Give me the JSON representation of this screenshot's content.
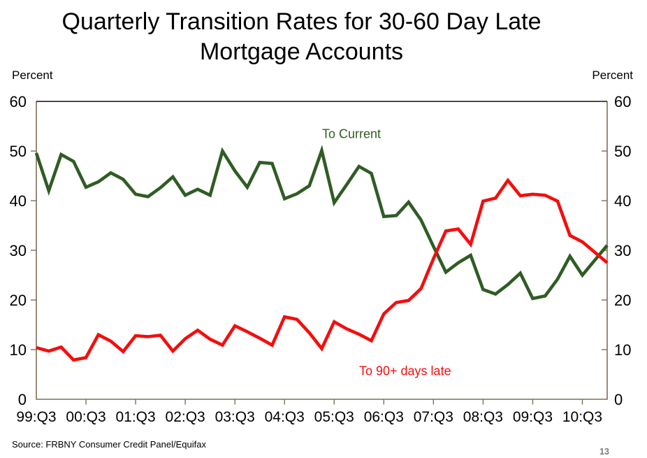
{
  "page": {
    "title_line1": "Quarterly Transition Rates for 30-60 Day Late",
    "title_line2": "Mortgage Accounts",
    "unit_label_left": "Percent",
    "unit_label_right": "Percent",
    "source": "Source: FRBNY Consumer Credit Panel/Equifax",
    "page_number": "13"
  },
  "colors": {
    "axis": "#7E6F55",
    "top_border": "#111111",
    "green": "#2F5C24",
    "red": "#F50D0D",
    "text": "#000000",
    "page_number": "#7b7b7b"
  },
  "chart_data": {
    "type": "line",
    "title": "Quarterly Transition Rates for 30-60 Day Late Mortgage Accounts",
    "ylabel": "Percent",
    "ylim": [
      0,
      60
    ],
    "yticks": [
      0,
      10,
      20,
      30,
      40,
      50,
      60
    ],
    "grid": false,
    "legend_position": "inline-annotations",
    "x_categories": [
      "99:Q3",
      "99:Q4",
      "00:Q1",
      "00:Q2",
      "00:Q3",
      "00:Q4",
      "01:Q1",
      "01:Q2",
      "01:Q3",
      "01:Q4",
      "02:Q1",
      "02:Q2",
      "02:Q3",
      "02:Q4",
      "03:Q1",
      "03:Q2",
      "03:Q3",
      "03:Q4",
      "04:Q1",
      "04:Q2",
      "04:Q3",
      "04:Q4",
      "05:Q1",
      "05:Q2",
      "05:Q3",
      "05:Q4",
      "06:Q1",
      "06:Q2",
      "06:Q3",
      "06:Q4",
      "07:Q1",
      "07:Q2",
      "07:Q3",
      "07:Q4",
      "08:Q1",
      "08:Q2",
      "08:Q3",
      "08:Q4",
      "09:Q1",
      "09:Q2",
      "09:Q3",
      "09:Q4",
      "10:Q1",
      "10:Q2",
      "10:Q3",
      "10:Q4",
      "11:Q1"
    ],
    "x_axis_tick_labels": [
      "99:Q3",
      "00:Q3",
      "01:Q3",
      "02:Q3",
      "03:Q3",
      "04:Q3",
      "05:Q3",
      "06:Q3",
      "07:Q3",
      "08:Q3",
      "09:Q3",
      "10:Q3"
    ],
    "x_tick_every": 4,
    "series": [
      {
        "name": "To Current",
        "color_key": "green",
        "values": [
          49.6,
          42,
          49.3,
          47.9,
          42.7,
          43.8,
          45.6,
          44.3,
          41.3,
          40.8,
          42.6,
          44.8,
          41.1,
          42.3,
          41.1,
          50,
          46,
          42.7,
          47.7,
          47.5,
          40.4,
          41.4,
          43,
          50.1,
          39.6,
          43.2,
          46.9,
          45.5,
          36.8,
          37,
          39.7,
          36.1,
          30.8,
          25.6,
          27.5,
          29,
          22.1,
          21.2,
          23.1,
          25.4,
          20.3,
          20.8,
          24.2,
          28.8,
          25,
          28,
          31
        ]
      },
      {
        "name": "To 90+ days late",
        "color_key": "red",
        "values": [
          10.4,
          9.7,
          10.5,
          7.9,
          8.4,
          13,
          11.7,
          9.6,
          12.8,
          12.6,
          12.9,
          9.7,
          12.2,
          13.9,
          12.1,
          10.9,
          14.8,
          13.6,
          12.3,
          10.9,
          16.6,
          16.1,
          13.4,
          10.2,
          15.6,
          14.2,
          13.1,
          11.8,
          17.2,
          19.5,
          19.9,
          22.3,
          28.3,
          33.9,
          34.3,
          31.2,
          39.9,
          40.5,
          44.1,
          41,
          41.3,
          41.1,
          39.9,
          33,
          31.7,
          29.6,
          27.5
        ]
      }
    ],
    "annotations": [
      {
        "text": "To Current",
        "fx": 0.552,
        "fy": 0.11,
        "series": 0
      },
      {
        "text": "To 90+ days late",
        "fx": 0.646,
        "fy": 0.907,
        "series": 1
      }
    ]
  }
}
